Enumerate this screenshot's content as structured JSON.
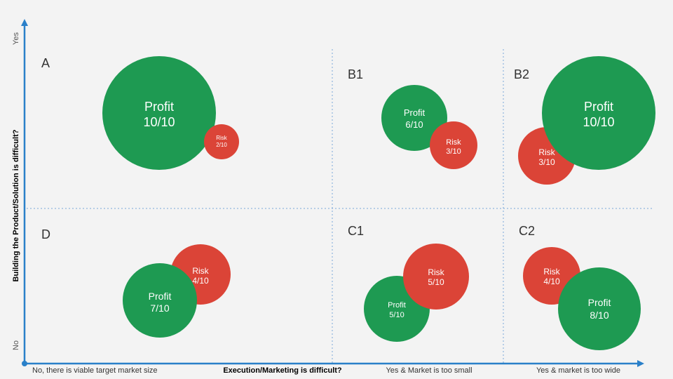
{
  "colors": {
    "profit": "#1e9a52",
    "risk": "#db4437",
    "axis": "#2a80c9",
    "divider": "#7aa7d8",
    "background": "#f3f3f3"
  },
  "y_axis": {
    "title": "Building the Product/Solution is difficult?",
    "top_label": "Yes",
    "bottom_label": "No"
  },
  "x_axis": {
    "title": "Execution/Marketing is difficult?",
    "labels": [
      "No, there is viable target market size",
      "Yes & Market is too small",
      "Yes & market is too wide"
    ]
  },
  "quadrants": {
    "A": {
      "label": "A",
      "profit": {
        "name": "Profit",
        "score": "10/10"
      },
      "risk": {
        "name": "Risk",
        "score": "2/10"
      }
    },
    "B1": {
      "label": "B1",
      "profit": {
        "name": "Profit",
        "score": "6/10"
      },
      "risk": {
        "name": "Risk",
        "score": "3/10"
      }
    },
    "B2": {
      "label": "B2",
      "profit": {
        "name": "Profit",
        "score": "10/10"
      },
      "risk": {
        "name": "Risk",
        "score": "3/10"
      }
    },
    "D": {
      "label": "D",
      "profit": {
        "name": "Profit",
        "score": "7/10"
      },
      "risk": {
        "name": "Risk",
        "score": "4/10"
      }
    },
    "C1": {
      "label": "C1",
      "profit": {
        "name": "Profit",
        "score": "5/10"
      },
      "risk": {
        "name": "Risk",
        "score": "5/10"
      }
    },
    "C2": {
      "label": "C2",
      "profit": {
        "name": "Profit",
        "score": "8/10"
      },
      "risk": {
        "name": "Risk",
        "score": "4/10"
      }
    }
  }
}
